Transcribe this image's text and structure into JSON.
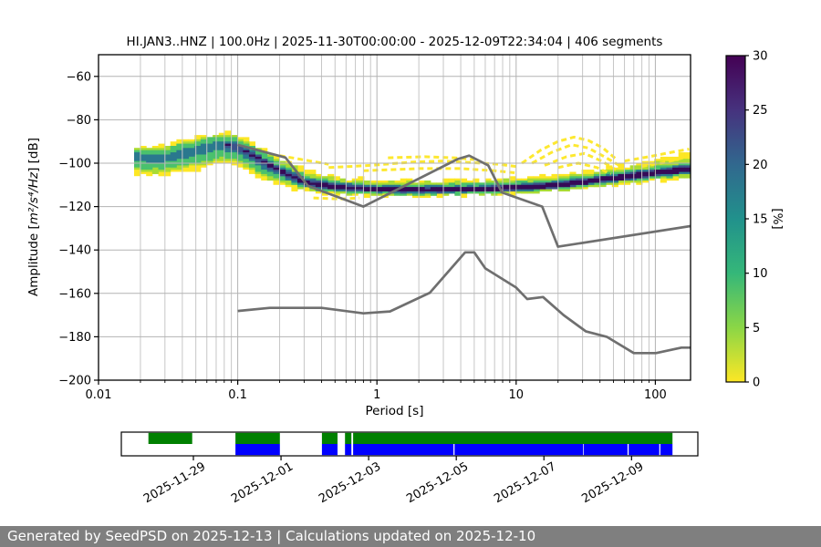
{
  "page": {
    "background": "#ffffff"
  },
  "chart_data": {
    "type": "heatmap",
    "title": "HI.JAN3..HNZ | 100.0Hz | 2025-11-30T00:00:00 - 2025-12-09T22:34:04 | 406 segments",
    "xlabel": "Period [s]",
    "ylabel_parts": [
      "Amplitude [",
      "m²/s⁴/Hz",
      "] [dB]"
    ],
    "xlim": [
      0.01,
      179
    ],
    "ylim": [
      -200,
      -50
    ],
    "grid": true,
    "xticks": [
      {
        "v": 0.01,
        "label": "0.01"
      },
      {
        "v": 0.1,
        "label": "0.1"
      },
      {
        "v": 1,
        "label": "1"
      },
      {
        "v": 10,
        "label": "10"
      },
      {
        "v": 100,
        "label": "100"
      }
    ],
    "yticks": [
      {
        "v": -60,
        "label": "−60"
      },
      {
        "v": -80,
        "label": "−80"
      },
      {
        "v": -100,
        "label": "−100"
      },
      {
        "v": -120,
        "label": "−120"
      },
      {
        "v": -140,
        "label": "−140"
      },
      {
        "v": -160,
        "label": "−160"
      },
      {
        "v": -180,
        "label": "−180"
      },
      {
        "v": -200,
        "label": "−200"
      }
    ],
    "colorbar": {
      "label": "[%]",
      "lim": [
        0,
        30
      ],
      "ticks": [
        {
          "v": 0,
          "label": "0"
        },
        {
          "v": 5,
          "label": "5"
        },
        {
          "v": 10,
          "label": "10"
        },
        {
          "v": 15,
          "label": "15"
        },
        {
          "v": 20,
          "label": "20"
        },
        {
          "v": 25,
          "label": "25"
        },
        {
          "v": 30,
          "label": "30"
        }
      ],
      "gradient": [
        {
          "v": 0,
          "c": "#fde725"
        },
        {
          "v": 5,
          "c": "#8bd646"
        },
        {
          "v": 10,
          "c": "#35b779"
        },
        {
          "v": 15,
          "c": "#21918c"
        },
        {
          "v": 20,
          "c": "#31688e"
        },
        {
          "v": 25,
          "c": "#46327e"
        },
        {
          "v": 30,
          "c": "#440154"
        }
      ]
    },
    "noise_models": {
      "color": "#6f6f6f",
      "nhnm": [
        [
          0.1,
          -91.5
        ],
        [
          0.22,
          -97.4
        ],
        [
          0.32,
          -110.5
        ],
        [
          0.8,
          -120.0
        ],
        [
          3.8,
          -98.1
        ],
        [
          4.6,
          -96.5
        ],
        [
          6.3,
          -101.0
        ],
        [
          7.9,
          -113.5
        ],
        [
          15.4,
          -120.0
        ],
        [
          20.0,
          -138.5
        ],
        [
          179.0,
          -129.0
        ]
      ],
      "nlnm": [
        [
          0.1,
          -168.1
        ],
        [
          0.17,
          -166.7
        ],
        [
          0.4,
          -166.7
        ],
        [
          0.8,
          -169.2
        ],
        [
          1.24,
          -168.3
        ],
        [
          2.4,
          -159.7
        ],
        [
          4.3,
          -141.1
        ],
        [
          5.0,
          -141.1
        ],
        [
          6.0,
          -148.5
        ],
        [
          10.0,
          -157.3
        ],
        [
          12.0,
          -162.6
        ],
        [
          15.6,
          -161.7
        ],
        [
          21.9,
          -170.0
        ],
        [
          31.6,
          -177.5
        ],
        [
          45.0,
          -180.1
        ],
        [
          70.0,
          -187.5
        ],
        [
          101.0,
          -187.5
        ],
        [
          154.0,
          -185.0
        ],
        [
          179.0,
          -185.0
        ]
      ]
    },
    "layer_colors": {
      "yellow": "#fde725",
      "yellow_green": "#a8db34",
      "green": "#4ac16d",
      "teal": "#2a788e",
      "indigo": "#3b528b",
      "core": "#360a57"
    },
    "ppsd_band": {
      "columns": [
        "period_s",
        "mode_db",
        "yellow_up",
        "yellow_down",
        "green_up",
        "green_down",
        "teal_up",
        "teal_down",
        "core_up",
        "core_down"
      ],
      "points": [
        [
          0.018,
          -97.0,
          5.5,
          8.0,
          3.5,
          5.0,
          1.5,
          2.0,
          0,
          0
        ],
        [
          0.028,
          -98.0,
          6.0,
          8.0,
          4.0,
          5.0,
          1.5,
          2.0,
          0,
          0
        ],
        [
          0.045,
          -94.5,
          6.0,
          9.5,
          4.0,
          6.0,
          1.5,
          2.5,
          0,
          0
        ],
        [
          0.075,
          -91.0,
          5.0,
          9.5,
          3.5,
          6.5,
          1.5,
          2.5,
          0,
          0
        ],
        [
          0.1,
          -92.5,
          5.5,
          9.0,
          3.5,
          6.0,
          1.5,
          3.0,
          0.4,
          0.4
        ],
        [
          0.15,
          -99.0,
          6.0,
          8.0,
          4.0,
          5.5,
          2.0,
          3.0,
          0.6,
          0.6
        ],
        [
          0.22,
          -105.0,
          6.5,
          5.5,
          3.5,
          3.5,
          2.0,
          2.3,
          0.7,
          0.7
        ],
        [
          0.32,
          -109.0,
          5.5,
          4.0,
          3.0,
          2.6,
          1.8,
          1.8,
          0.8,
          0.8
        ],
        [
          0.5,
          -111.0,
          4.5,
          3.3,
          2.6,
          2.3,
          1.7,
          1.6,
          0.9,
          0.9
        ],
        [
          1.0,
          -112.0,
          4.2,
          3.0,
          2.4,
          2.2,
          1.6,
          1.5,
          0.9,
          0.9
        ],
        [
          2.0,
          -112.4,
          4.2,
          2.8,
          2.4,
          2.1,
          1.6,
          1.5,
          0.9,
          0.9
        ],
        [
          5.0,
          -112.0,
          4.3,
          2.8,
          2.4,
          2.1,
          1.6,
          1.5,
          0.9,
          0.9
        ],
        [
          10.0,
          -111.3,
          4.6,
          2.8,
          2.5,
          2.1,
          1.7,
          1.5,
          1.0,
          1.0
        ],
        [
          20.0,
          -110.0,
          4.8,
          3.0,
          2.5,
          2.2,
          1.7,
          1.6,
          1.0,
          1.0
        ],
        [
          35.0,
          -108.2,
          5.0,
          3.2,
          2.6,
          2.2,
          1.8,
          1.6,
          1.0,
          1.0
        ],
        [
          60.0,
          -106.3,
          5.5,
          3.4,
          2.6,
          2.3,
          1.8,
          1.7,
          1.1,
          1.1
        ],
        [
          100.0,
          -104.5,
          6.5,
          3.6,
          2.7,
          2.4,
          1.9,
          1.7,
          1.1,
          1.1
        ],
        [
          140.0,
          -103.3,
          7.0,
          4.0,
          2.8,
          2.4,
          1.9,
          1.8,
          1.2,
          1.2
        ],
        [
          179.0,
          -102.5,
          7.5,
          4.5,
          2.9,
          2.5,
          2.0,
          1.8,
          1.2,
          1.2
        ]
      ]
    },
    "yellow_curves": [
      [
        [
          11,
          -100
        ],
        [
          15,
          -94
        ],
        [
          20,
          -90
        ],
        [
          26,
          -88
        ],
        [
          33,
          -89.5
        ],
        [
          42,
          -93
        ],
        [
          52,
          -98
        ]
      ],
      [
        [
          13,
          -100
        ],
        [
          18,
          -95
        ],
        [
          25,
          -91.5
        ],
        [
          33,
          -93
        ],
        [
          43,
          -97
        ],
        [
          55,
          -101
        ]
      ],
      [
        [
          16,
          -101
        ],
        [
          23,
          -97
        ],
        [
          31,
          -95.5
        ],
        [
          41,
          -99
        ],
        [
          52,
          -103
        ]
      ],
      [
        [
          20,
          -102
        ],
        [
          28,
          -100
        ],
        [
          38,
          -102
        ],
        [
          48,
          -105
        ]
      ],
      [
        [
          0.45,
          -102
        ],
        [
          0.9,
          -101
        ],
        [
          1.8,
          -99.5
        ],
        [
          3,
          -99
        ],
        [
          5,
          -99.8
        ],
        [
          7.5,
          -100.5
        ],
        [
          10,
          -101.5
        ]
      ],
      [
        [
          0.8,
          -103.5
        ],
        [
          2,
          -102.5
        ],
        [
          4,
          -102.5
        ],
        [
          7,
          -103.5
        ],
        [
          10,
          -104.5
        ]
      ],
      [
        [
          1.2,
          -97.5
        ],
        [
          2.2,
          -97
        ],
        [
          3.6,
          -97.5
        ],
        [
          5,
          -98.3
        ]
      ],
      [
        [
          60,
          -99
        ],
        [
          90,
          -97
        ],
        [
          130,
          -95
        ],
        [
          175,
          -93.5
        ]
      ],
      [
        [
          80,
          -101.5
        ],
        [
          120,
          -99.5
        ],
        [
          170,
          -97
        ]
      ],
      [
        [
          0.35,
          -116
        ],
        [
          0.55,
          -116.5
        ],
        [
          0.75,
          -116
        ]
      ],
      [
        [
          0.2,
          -96.5
        ],
        [
          0.3,
          -98.5
        ],
        [
          0.45,
          -100.5
        ]
      ]
    ]
  },
  "timeline": {
    "colors": {
      "green": "#008000",
      "blue": "#0000ff"
    },
    "xticks": [
      {
        "f": 0.125,
        "label": "2025-11-29"
      },
      {
        "f": 0.277,
        "label": "2025-12-01"
      },
      {
        "f": 0.429,
        "label": "2025-12-03"
      },
      {
        "f": 0.581,
        "label": "2025-12-05"
      },
      {
        "f": 0.733,
        "label": "2025-12-07"
      },
      {
        "f": 0.885,
        "label": "2025-12-09"
      }
    ],
    "green_segments": [
      [
        0.047,
        0.123
      ],
      [
        0.198,
        0.275
      ],
      [
        0.348,
        0.375
      ],
      [
        0.388,
        0.399
      ],
      [
        0.402,
        0.956
      ]
    ],
    "blue_segments": [
      [
        0.198,
        0.275
      ],
      [
        0.348,
        0.375
      ],
      [
        0.388,
        0.399
      ],
      [
        0.402,
        0.576
      ],
      [
        0.578,
        0.801
      ],
      [
        0.802,
        0.878
      ],
      [
        0.88,
        0.933
      ],
      [
        0.935,
        0.956
      ]
    ]
  },
  "footer": {
    "text": "Generated by SeedPSD on 2025-12-13 | Calculations updated on 2025-12-10",
    "background": "#7f7f7f",
    "text_color": "#ffffff"
  }
}
